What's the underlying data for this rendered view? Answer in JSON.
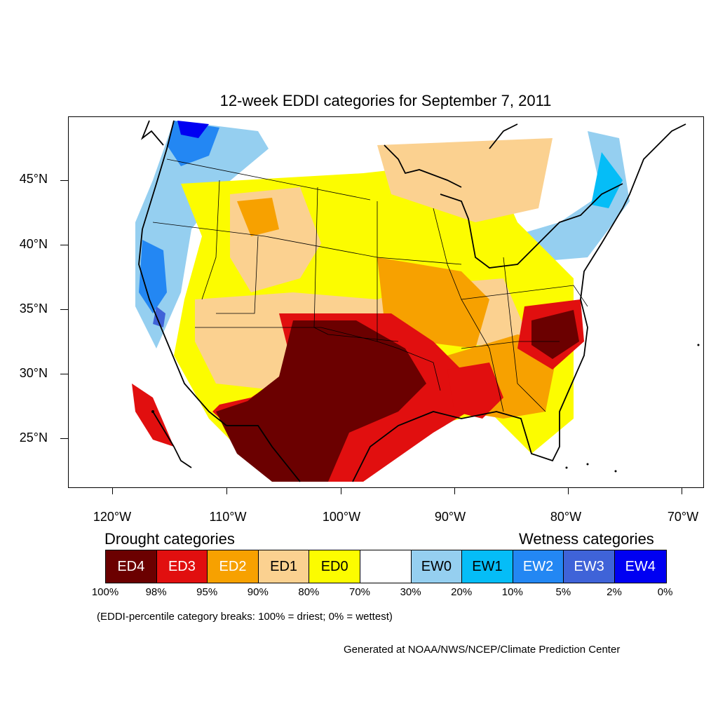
{
  "title": "12-week EDDI categories for September 7, 2011",
  "y_axis": {
    "ticks": [
      {
        "label": "45°N",
        "lat": 45
      },
      {
        "label": "40°N",
        "lat": 40
      },
      {
        "label": "35°N",
        "lat": 35
      },
      {
        "label": "30°N",
        "lat": 30
      },
      {
        "label": "25°N",
        "lat": 25
      }
    ]
  },
  "x_axis": {
    "ticks": [
      {
        "label": "120°W",
        "lon": -120
      },
      {
        "label": "110°W",
        "lon": -110
      },
      {
        "label": "100°W",
        "lon": -100
      },
      {
        "label": "90°W",
        "lon": -90
      },
      {
        "label": "80°W",
        "lon": -80
      },
      {
        "label": "70°W",
        "lon": -70
      }
    ]
  },
  "legend": {
    "drought_heading": "Drought categories",
    "wetness_heading": "Wetness categories",
    "categories": [
      {
        "label": "ED4",
        "color": "#6b0000",
        "text_color": "#ffffff"
      },
      {
        "label": "ED3",
        "color": "#e10f0f",
        "text_color": "#ffffff"
      },
      {
        "label": "ED2",
        "color": "#f7a100",
        "text_color": "#ffffff"
      },
      {
        "label": "ED1",
        "color": "#fbd190",
        "text_color": "#000000"
      },
      {
        "label": "ED0",
        "color": "#fcfc00",
        "text_color": "#000000"
      },
      {
        "label": "",
        "color": "#ffffff",
        "text_color": "#000000"
      },
      {
        "label": "EW0",
        "color": "#95cff0",
        "text_color": "#000000"
      },
      {
        "label": "EW1",
        "color": "#05bdf7",
        "text_color": "#000000"
      },
      {
        "label": "EW2",
        "color": "#2387f3",
        "text_color": "#ffffff"
      },
      {
        "label": "EW3",
        "color": "#3f63d8",
        "text_color": "#ffffff"
      },
      {
        "label": "EW4",
        "color": "#0000f2",
        "text_color": "#ffffff"
      }
    ],
    "breaks": [
      "100%",
      "98%",
      "95%",
      "90%",
      "80%",
      "70%",
      "30%",
      "20%",
      "10%",
      "5%",
      "2%",
      "0%"
    ]
  },
  "note": "(EDDI-percentile category breaks: 100% = driest; 0% = wettest)",
  "credit": "Generated at NOAA/NWS/NCEP/Climate Prediction Center"
}
